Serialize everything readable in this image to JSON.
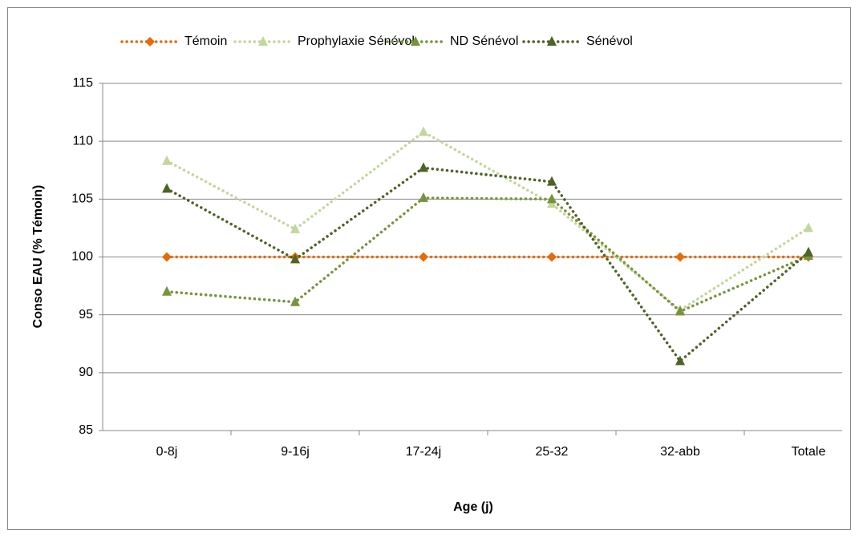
{
  "chart_data": {
    "type": "line",
    "x_label": "Age (j)",
    "y_label": "Conso EAU (% Témoin)",
    "categories": [
      "0-8j",
      "9-16j",
      "17-24j",
      "25-32",
      "32-abb",
      "Totale"
    ],
    "series": [
      {
        "name": "Témoin",
        "color": "#e36c09",
        "marker": "diamond",
        "values": [
          100,
          100,
          100,
          100,
          100,
          100
        ]
      },
      {
        "name": "Prophylaxie Sénévol",
        "color": "#c3d69b",
        "marker": "triangle",
        "values": [
          108.3,
          102.4,
          110.8,
          104.6,
          95.4,
          102.5
        ]
      },
      {
        "name": "ND Sénévol",
        "color": "#77933c",
        "marker": "triangle",
        "values": [
          97.0,
          96.1,
          105.1,
          105.0,
          95.3,
          100.1
        ]
      },
      {
        "name": "Sénévol",
        "color": "#4f6228",
        "marker": "triangle",
        "values": [
          105.9,
          99.8,
          107.7,
          106.5,
          91.0,
          100.4
        ]
      }
    ],
    "ylim": [
      85,
      115
    ],
    "yticks": [
      85,
      90,
      95,
      100,
      105,
      110,
      115
    ],
    "grid": true,
    "legend": "top"
  }
}
